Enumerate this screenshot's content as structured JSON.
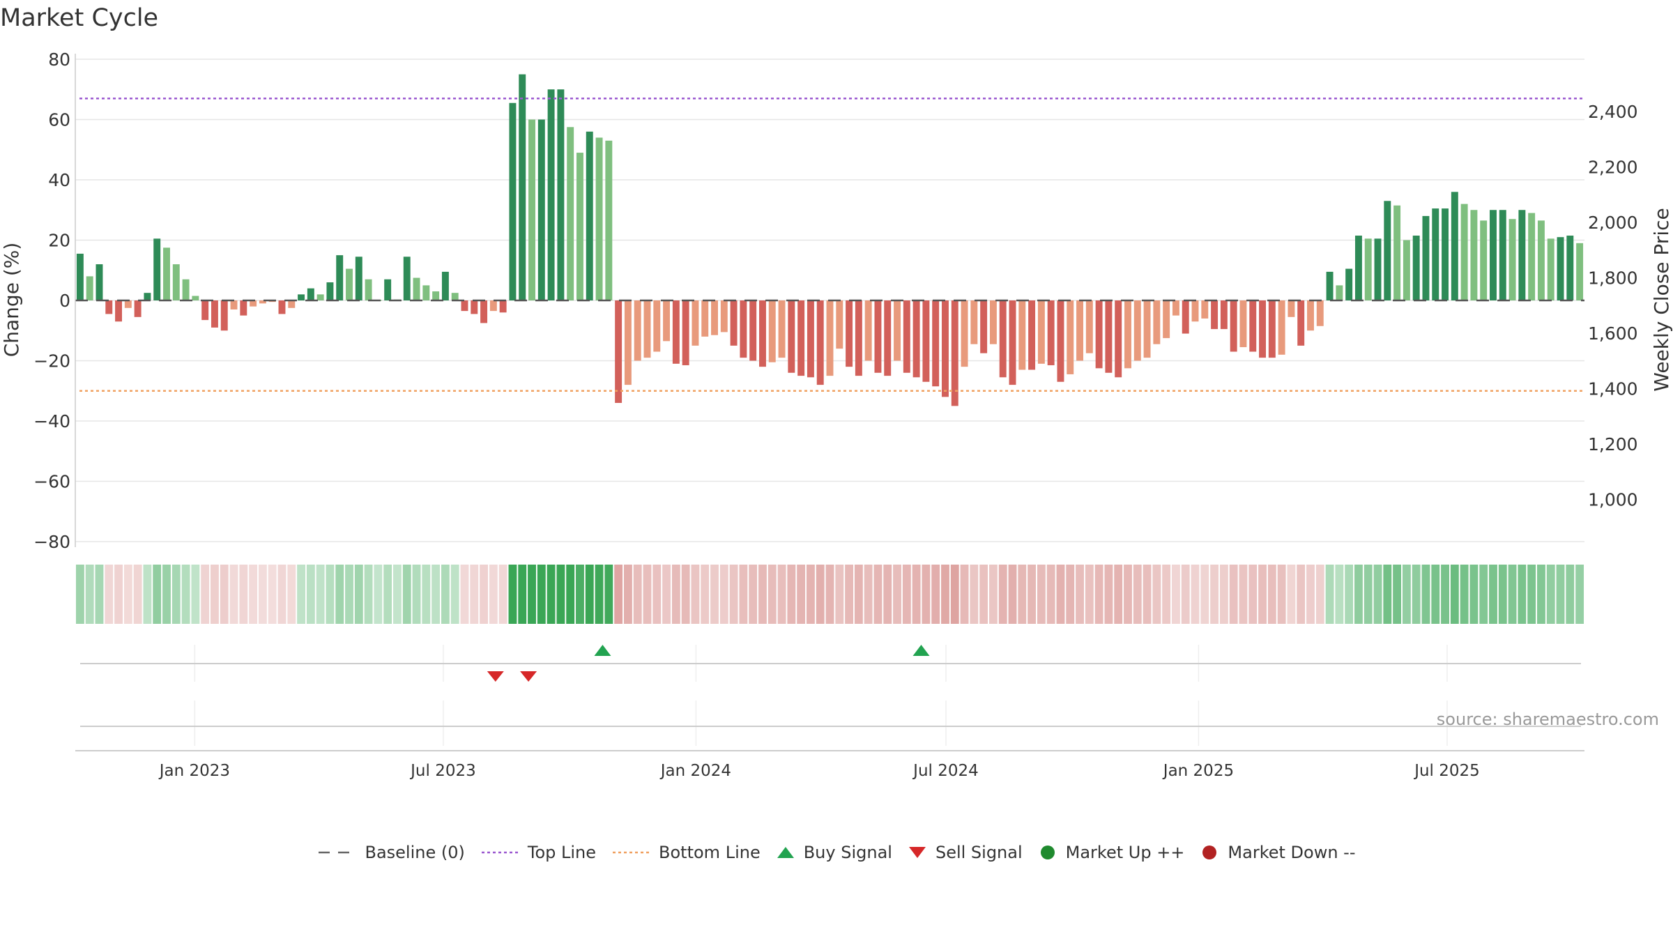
{
  "chart_data": {
    "type": "bar",
    "title": "Market Cycle",
    "ylabel_left": "Change (%)",
    "ylabel_right": "Weekly Close Price",
    "ylim_left": [
      -80,
      80
    ],
    "yticks_left": [
      "80",
      "60",
      "40",
      "20",
      "0",
      "−20",
      "−40",
      "−60",
      "−80"
    ],
    "yticks_right": [
      "2,400",
      "2,200",
      "2,000",
      "1,800",
      "1,600",
      "1,400",
      "1,200",
      "1,000"
    ],
    "x_start": "2022-10-06",
    "x_end": "2025-10-09",
    "x_ticks": [
      {
        "date": "2023-01-01",
        "label": "Jan 2023"
      },
      {
        "date": "2023-07-01",
        "label": "Jul 2023"
      },
      {
        "date": "2024-01-01",
        "label": "Jan 2024"
      },
      {
        "date": "2024-07-01",
        "label": "Jul 2024"
      },
      {
        "date": "2025-01-01",
        "label": "Jan 2025"
      },
      {
        "date": "2025-07-01",
        "label": "Jul 2025"
      }
    ],
    "top_line": 67,
    "bottom_line": -30,
    "grid": true,
    "legend_position": "bottom",
    "weekly_change": [
      15.5,
      8,
      12,
      -4.5,
      -7,
      -2.5,
      -5.5,
      2.5,
      20.5,
      17.5,
      12,
      7,
      1.5,
      -6.5,
      -9,
      -10,
      -3,
      -5,
      -2,
      -1,
      -0.5,
      -4.5,
      -2.5,
      2,
      4,
      2,
      6,
      15,
      10.5,
      14.5,
      7,
      0.2,
      7,
      0.3,
      14.5,
      7.5,
      5,
      3,
      9.5,
      2.5,
      -3.5,
      -4.5,
      -7.5,
      -3.5,
      -4,
      65.5,
      75,
      60,
      60,
      70,
      70,
      57.5,
      49,
      56,
      54,
      53,
      -34,
      -28,
      -20,
      -19,
      -17,
      -13.5,
      -21,
      -21.5,
      -15,
      -12,
      -11.5,
      -10.5,
      -15,
      -19,
      -20,
      -22,
      -20.5,
      -19,
      -24,
      -25,
      -25.5,
      -28,
      -25,
      -16,
      -22,
      -25,
      -20,
      -24,
      -25,
      -20,
      -24,
      -25.5,
      -27,
      -28.5,
      -32,
      -35,
      -22,
      -14.5,
      -17.5,
      -14.5,
      -25.5,
      -28,
      -23,
      -23,
      -21,
      -21.5,
      -27,
      -24.5,
      -20,
      -17.5,
      -22.5,
      -24,
      -25.5,
      -22.5,
      -20,
      -19,
      -14.5,
      -12.5,
      -5,
      -11,
      -7,
      -6,
      -9.5,
      -9.5,
      -17,
      -15.5,
      -17,
      -19,
      -19,
      -18,
      -5.5,
      -15,
      -10,
      -8.5,
      9.5,
      5,
      10.5,
      21.5,
      20.5,
      20.5,
      33,
      31.5,
      20,
      21.5,
      28,
      30.5,
      30.5,
      36,
      32,
      30,
      26.5,
      30,
      30,
      27,
      30,
      29,
      26.5,
      20.5,
      21,
      21.5,
      19
    ],
    "signals": [
      {
        "type": "sell",
        "date": "2023-08-08"
      },
      {
        "type": "sell",
        "date": "2023-09-01"
      },
      {
        "type": "buy",
        "date": "2023-10-25"
      },
      {
        "type": "buy",
        "date": "2024-06-13"
      }
    ],
    "legend": [
      {
        "label": "Baseline (0)",
        "style": "dashed",
        "color": "#666666"
      },
      {
        "label": "Top Line",
        "style": "dotted",
        "color": "#9b59d0"
      },
      {
        "label": "Bottom Line",
        "style": "dotted",
        "color": "#f0a060"
      },
      {
        "label": "Buy Signal",
        "style": "triangle-up",
        "color": "#22a350"
      },
      {
        "label": "Sell Signal",
        "style": "triangle-down",
        "color": "#d62728"
      },
      {
        "label": "Market Up ++",
        "style": "circle",
        "color": "#1f8a2e"
      },
      {
        "label": "Market Down --",
        "style": "circle",
        "color": "#b22222"
      }
    ],
    "colors": {
      "up_strong": "#2e8b57",
      "up_weak": "#7fbf7f",
      "down_strong": "#d2605a",
      "down_weak": "#e89a7c"
    }
  },
  "source": "source: sharemaestro.com"
}
